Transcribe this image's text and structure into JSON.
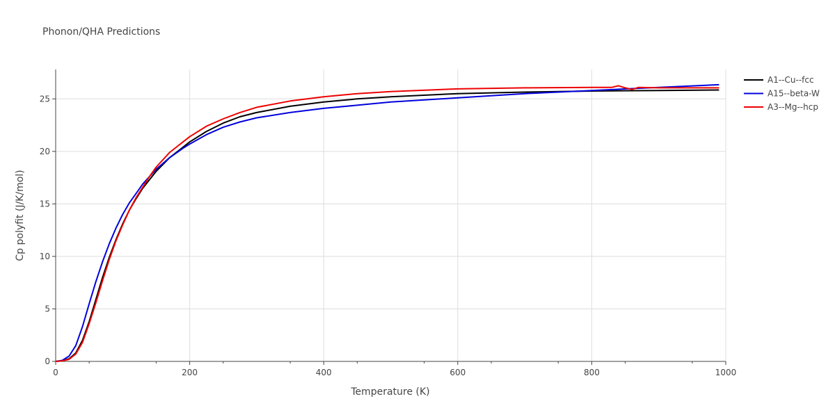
{
  "chart_data": {
    "type": "line",
    "title": "Phonon/QHA Predictions",
    "xlabel": "Temperature (K)",
    "ylabel": "Cp polyfit (J/K/mol)",
    "xlim": [
      0,
      1000
    ],
    "ylim": [
      0,
      27.8
    ],
    "x_ticks": [
      0,
      200,
      400,
      600,
      800,
      1000
    ],
    "y_ticks": [
      0,
      5,
      10,
      15,
      20,
      25
    ],
    "grid": true,
    "legend_position": "top-right",
    "series": [
      {
        "name": "A1--Cu--fcc",
        "color": "#000000",
        "x": [
          0,
          10,
          20,
          30,
          40,
          50,
          60,
          70,
          80,
          90,
          100,
          110,
          120,
          130,
          140,
          150,
          170,
          190,
          200,
          225,
          250,
          275,
          300,
          350,
          400,
          450,
          500,
          600,
          700,
          800,
          900,
          990
        ],
        "y": [
          0,
          0.05,
          0.25,
          0.8,
          2.0,
          3.8,
          5.9,
          8.0,
          9.9,
          11.6,
          13.1,
          14.4,
          15.5,
          16.5,
          17.3,
          18.1,
          19.4,
          20.4,
          20.9,
          21.9,
          22.7,
          23.3,
          23.7,
          24.3,
          24.7,
          25.0,
          25.2,
          25.5,
          25.65,
          25.75,
          25.8,
          25.85
        ]
      },
      {
        "name": "A15--beta-W",
        "color": "#0000dd",
        "x": [
          0,
          10,
          20,
          30,
          40,
          50,
          60,
          70,
          80,
          90,
          100,
          110,
          120,
          130,
          140,
          150,
          170,
          190,
          200,
          225,
          250,
          275,
          300,
          350,
          400,
          450,
          500,
          600,
          700,
          800,
          900,
          990
        ],
        "y": [
          0,
          0.1,
          0.5,
          1.5,
          3.3,
          5.5,
          7.6,
          9.5,
          11.2,
          12.7,
          14.0,
          15.1,
          16.0,
          16.9,
          17.6,
          18.3,
          19.4,
          20.3,
          20.7,
          21.6,
          22.3,
          22.8,
          23.2,
          23.7,
          24.1,
          24.4,
          24.7,
          25.1,
          25.5,
          25.8,
          26.1,
          26.35
        ]
      },
      {
        "name": "A3--Mg--hcp",
        "color": "#ee0000",
        "x": [
          0,
          10,
          20,
          30,
          40,
          50,
          60,
          70,
          80,
          90,
          100,
          110,
          120,
          130,
          140,
          150,
          170,
          190,
          200,
          225,
          250,
          275,
          300,
          350,
          400,
          450,
          500,
          600,
          700,
          800,
          830,
          840,
          850,
          860,
          870,
          900,
          990
        ],
        "y": [
          0,
          0.05,
          0.2,
          0.7,
          1.8,
          3.6,
          5.6,
          7.7,
          9.7,
          11.5,
          13.0,
          14.4,
          15.6,
          16.6,
          17.6,
          18.5,
          19.9,
          20.9,
          21.4,
          22.4,
          23.1,
          23.7,
          24.2,
          24.8,
          25.2,
          25.5,
          25.7,
          25.95,
          26.05,
          26.1,
          26.1,
          26.25,
          26.05,
          25.9,
          26.1,
          26.05,
          26.05
        ]
      }
    ]
  }
}
